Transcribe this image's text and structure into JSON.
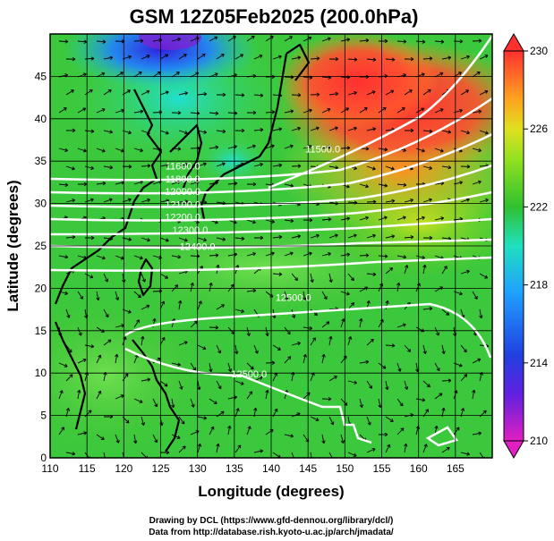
{
  "chart_data": {
    "type": "heatmap",
    "title": "GSM 12Z05Feb2025 (200.0hPa)",
    "xlabel": "Longitude (degrees)",
    "ylabel": "Latitude  (degrees)",
    "xlim": [
      110,
      170
    ],
    "ylim": [
      0,
      50
    ],
    "x_ticks": [
      110,
      115,
      120,
      125,
      130,
      135,
      140,
      145,
      150,
      155,
      160,
      165
    ],
    "y_ticks": [
      0,
      5,
      10,
      15,
      20,
      25,
      30,
      35,
      40,
      45
    ],
    "grid": true,
    "colorbar": {
      "range": [
        210,
        230
      ],
      "ticks": [
        210,
        214,
        218,
        222,
        226,
        230
      ],
      "colors": [
        "#e020c0",
        "#2020e0",
        "#20a0ff",
        "#20e0d0",
        "#20c020",
        "#60e020",
        "#e0e020",
        "#ff9020",
        "#ff3030"
      ]
    },
    "contours": [
      {
        "label": "11500.0",
        "lon": 147,
        "lat": 36
      },
      {
        "label": "11600.0",
        "lon": 128,
        "lat": 34
      },
      {
        "label": "11800.0",
        "lon": 128,
        "lat": 32.5
      },
      {
        "label": "12000.0",
        "lon": 128,
        "lat": 31
      },
      {
        "label": "12100.0",
        "lon": 128,
        "lat": 29.5
      },
      {
        "label": "12200.0",
        "lon": 128,
        "lat": 28
      },
      {
        "label": "12300.0",
        "lon": 129,
        "lat": 26.5
      },
      {
        "label": "12400.0",
        "lon": 130,
        "lat": 24.5
      },
      {
        "label": "12500.0",
        "lon": 143,
        "lat": 18.5
      },
      {
        "label": "12500.0",
        "lon": 137,
        "lat": 9.5
      }
    ]
  },
  "credits": {
    "line1": "Drawing by DCL (https://www.gfd-dennou.org/library/dcl/)",
    "line2": "Data from http://database.rish.kyoto-u.ac.jp/arch/jmadata/"
  }
}
